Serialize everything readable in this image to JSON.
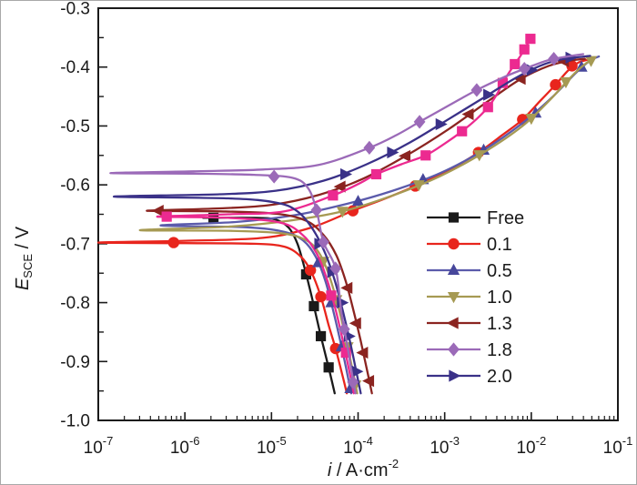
{
  "chart_data": {
    "type": "line",
    "title": "",
    "xlabel": {
      "symbol": "i",
      "unit": " / A·cm",
      "exponent": "-2"
    },
    "ylabel": {
      "symbol": "E",
      "subscript": "SCE",
      "unit": " / V"
    },
    "x_axis": {
      "scale": "log",
      "min_exp": -7,
      "max_exp": -1,
      "tick_exponents": [
        -7,
        -6,
        -5,
        -4,
        -3,
        -2,
        -1
      ],
      "tick_base": "10"
    },
    "y_axis": {
      "min": -1.0,
      "max": -0.3,
      "major_step": 0.1,
      "minor_step": 0.05,
      "tick_labels": [
        "-0.3",
        "-0.4",
        "-0.5",
        "-0.6",
        "-0.7",
        "-0.8",
        "-0.9",
        "-1.0"
      ]
    },
    "grid": false,
    "legend_position": "center-right",
    "series": [
      {
        "name": "free",
        "label": "Free",
        "color": "#1a1a1a",
        "marker": "square",
        "in_legend": true,
        "curve": [
          [
            -5.79,
            -0.656
          ],
          [
            -5.2,
            -0.656
          ],
          [
            -4.95,
            -0.659
          ],
          [
            -4.8,
            -0.673
          ],
          [
            -4.7,
            -0.7
          ],
          [
            -4.62,
            -0.74
          ],
          [
            -4.56,
            -0.775
          ],
          [
            -4.51,
            -0.806
          ],
          [
            -4.43,
            -0.857
          ],
          [
            -4.34,
            -0.91
          ],
          [
            -4.27,
            -0.954
          ]
        ],
        "markers": [
          [
            -5.67,
            -0.656
          ],
          [
            -4.6,
            -0.752
          ],
          [
            -4.51,
            -0.806
          ],
          [
            -4.43,
            -0.857
          ],
          [
            -4.34,
            -0.91
          ]
        ]
      },
      {
        "name": "c0_1",
        "label": "0.1",
        "color": "#e8251d",
        "marker": "circle",
        "in_legend": true,
        "curve": [
          [
            -4.13,
            -0.954
          ],
          [
            -4.19,
            -0.918
          ],
          [
            -4.26,
            -0.878
          ],
          [
            -4.34,
            -0.838
          ],
          [
            -4.43,
            -0.79
          ],
          [
            -4.54,
            -0.748
          ],
          [
            -4.66,
            -0.722
          ],
          [
            -4.85,
            -0.705
          ],
          [
            -5.2,
            -0.7
          ],
          [
            -6.0,
            -0.699
          ],
          [
            -7.0,
            -0.698
          ],
          [
            -6.0,
            -0.695
          ],
          [
            -5.1,
            -0.69
          ],
          [
            -4.55,
            -0.673
          ],
          [
            -4.06,
            -0.644
          ],
          [
            -3.7,
            -0.624
          ],
          [
            -3.34,
            -0.602
          ],
          [
            -2.95,
            -0.575
          ],
          [
            -2.61,
            -0.545
          ],
          [
            -2.33,
            -0.515
          ],
          [
            -2.1,
            -0.489
          ],
          [
            -1.9,
            -0.458
          ],
          [
            -1.72,
            -0.43
          ],
          [
            -1.57,
            -0.405
          ],
          [
            -1.45,
            -0.392
          ],
          [
            -1.3,
            -0.386
          ]
        ],
        "markers": [
          [
            -6.13,
            -0.698
          ],
          [
            -4.55,
            -0.745
          ],
          [
            -4.43,
            -0.79
          ],
          [
            -4.26,
            -0.878
          ],
          [
            -4.06,
            -0.644
          ],
          [
            -3.34,
            -0.602
          ],
          [
            -2.61,
            -0.545
          ],
          [
            -2.1,
            -0.489
          ],
          [
            -1.72,
            -0.43
          ],
          [
            -1.53,
            -0.398
          ]
        ]
      },
      {
        "name": "c0_5",
        "label": "0.5",
        "color": "#5b5bab",
        "marker": "triangle-up",
        "marker_color": "#47479b",
        "in_legend": true,
        "curve": [
          [
            -4.08,
            -0.954
          ],
          [
            -4.14,
            -0.91
          ],
          [
            -4.21,
            -0.862
          ],
          [
            -4.29,
            -0.812
          ],
          [
            -4.38,
            -0.762
          ],
          [
            -4.49,
            -0.722
          ],
          [
            -4.63,
            -0.695
          ],
          [
            -4.85,
            -0.68
          ],
          [
            -5.3,
            -0.672
          ],
          [
            -6.28,
            -0.669
          ],
          [
            -5.4,
            -0.663
          ],
          [
            -4.75,
            -0.652
          ],
          [
            -4.15,
            -0.633
          ],
          [
            -3.6,
            -0.61
          ],
          [
            -3.05,
            -0.58
          ],
          [
            -2.55,
            -0.541
          ],
          [
            -2.1,
            -0.495
          ],
          [
            -1.75,
            -0.45
          ],
          [
            -1.5,
            -0.412
          ],
          [
            -1.33,
            -0.39
          ],
          [
            -1.22,
            -0.382
          ]
        ],
        "markers": [
          [
            -4.46,
            -0.732
          ],
          [
            -4.31,
            -0.8
          ],
          [
            -4.19,
            -0.875
          ],
          [
            -4.09,
            -0.946
          ],
          [
            -4.0,
            -0.628
          ],
          [
            -3.25,
            -0.591
          ],
          [
            -2.55,
            -0.541
          ],
          [
            -1.95,
            -0.478
          ],
          [
            -1.42,
            -0.4
          ]
        ]
      },
      {
        "name": "c1_0",
        "label": "1.0",
        "color": "#a69a53",
        "marker": "triangle-down",
        "in_legend": true,
        "curve": [
          [
            -4.01,
            -0.954
          ],
          [
            -4.07,
            -0.91
          ],
          [
            -4.14,
            -0.862
          ],
          [
            -4.22,
            -0.812
          ],
          [
            -4.32,
            -0.76
          ],
          [
            -4.44,
            -0.718
          ],
          [
            -4.6,
            -0.694
          ],
          [
            -4.9,
            -0.682
          ],
          [
            -5.5,
            -0.678
          ],
          [
            -6.52,
            -0.677
          ],
          [
            -5.5,
            -0.671
          ],
          [
            -4.8,
            -0.661
          ],
          [
            -4.18,
            -0.645
          ],
          [
            -3.6,
            -0.618
          ],
          [
            -3.05,
            -0.585
          ],
          [
            -2.55,
            -0.545
          ],
          [
            -2.1,
            -0.5
          ],
          [
            -1.78,
            -0.455
          ],
          [
            -1.55,
            -0.418
          ],
          [
            -1.38,
            -0.395
          ],
          [
            -1.28,
            -0.387
          ]
        ],
        "markers": [
          [
            -4.4,
            -0.73
          ],
          [
            -4.25,
            -0.795
          ],
          [
            -4.12,
            -0.875
          ],
          [
            -4.03,
            -0.94
          ],
          [
            -4.18,
            -0.645
          ],
          [
            -3.3,
            -0.6
          ],
          [
            -2.6,
            -0.549
          ],
          [
            -2.0,
            -0.487
          ],
          [
            -1.6,
            -0.425
          ],
          [
            -1.31,
            -0.389
          ]
        ]
      },
      {
        "name": "c1_3",
        "label": "1.3",
        "color": "#8b2420",
        "marker": "triangle-left",
        "in_legend": true,
        "curve": [
          [
            -3.84,
            -0.954
          ],
          [
            -3.9,
            -0.912
          ],
          [
            -3.97,
            -0.865
          ],
          [
            -4.05,
            -0.815
          ],
          [
            -4.14,
            -0.765
          ],
          [
            -4.25,
            -0.72
          ],
          [
            -4.4,
            -0.685
          ],
          [
            -4.6,
            -0.661
          ],
          [
            -4.95,
            -0.649
          ],
          [
            -5.6,
            -0.645
          ],
          [
            -6.44,
            -0.644
          ],
          [
            -5.6,
            -0.64
          ],
          [
            -5.0,
            -0.634
          ],
          [
            -4.45,
            -0.617
          ],
          [
            -3.95,
            -0.59
          ],
          [
            -3.45,
            -0.551
          ],
          [
            -2.95,
            -0.505
          ],
          [
            -2.5,
            -0.458
          ],
          [
            -2.12,
            -0.42
          ],
          [
            -1.8,
            -0.398
          ],
          [
            -1.55,
            -0.389
          ],
          [
            -1.38,
            -0.386
          ]
        ],
        "markers": [
          [
            -6.3,
            -0.644
          ],
          [
            -4.12,
            -0.775
          ],
          [
            -4.02,
            -0.835
          ],
          [
            -3.94,
            -0.885
          ],
          [
            -3.87,
            -0.933
          ],
          [
            -4.2,
            -0.603
          ],
          [
            -3.45,
            -0.551
          ],
          [
            -2.72,
            -0.48
          ],
          [
            -2.12,
            -0.42
          ],
          [
            -1.62,
            -0.39
          ]
        ]
      },
      {
        "name": "unlabeled-magenta",
        "label": "",
        "color": "#ec2a90",
        "marker": "square",
        "in_legend": false,
        "curve": [
          [
            -4.05,
            -0.954
          ],
          [
            -4.11,
            -0.91
          ],
          [
            -4.18,
            -0.862
          ],
          [
            -4.26,
            -0.812
          ],
          [
            -4.36,
            -0.76
          ],
          [
            -4.48,
            -0.716
          ],
          [
            -4.64,
            -0.685
          ],
          [
            -4.9,
            -0.664
          ],
          [
            -5.5,
            -0.656
          ],
          [
            -6.32,
            -0.654
          ],
          [
            -5.5,
            -0.65
          ],
          [
            -4.85,
            -0.645
          ],
          [
            -4.29,
            -0.618
          ],
          [
            -3.99,
            -0.598
          ],
          [
            -3.79,
            -0.582
          ],
          [
            -3.5,
            -0.565
          ],
          [
            -3.22,
            -0.55
          ],
          [
            -3.0,
            -0.53
          ],
          [
            -2.8,
            -0.509
          ],
          [
            -2.63,
            -0.488
          ],
          [
            -2.5,
            -0.468
          ],
          [
            -2.4,
            -0.447
          ],
          [
            -2.33,
            -0.427
          ],
          [
            -2.26,
            -0.41
          ],
          [
            -2.19,
            -0.395
          ],
          [
            -2.13,
            -0.382
          ],
          [
            -2.08,
            -0.37
          ],
          [
            -2.0,
            -0.349
          ]
        ],
        "markers": [
          [
            -6.21,
            -0.654
          ],
          [
            -4.31,
            -0.788
          ],
          [
            -4.14,
            -0.885
          ],
          [
            -4.29,
            -0.618
          ],
          [
            -3.79,
            -0.582
          ],
          [
            -3.22,
            -0.55
          ],
          [
            -2.8,
            -0.509
          ],
          [
            -2.5,
            -0.468
          ],
          [
            -2.33,
            -0.427
          ],
          [
            -2.19,
            -0.395
          ],
          [
            -2.08,
            -0.37
          ],
          [
            -2.01,
            -0.352
          ]
        ]
      },
      {
        "name": "c2_0",
        "label": "2.0",
        "color": "#3a3188",
        "marker": "triangle-right",
        "in_legend": true,
        "curve": [
          [
            -3.97,
            -0.954
          ],
          [
            -4.03,
            -0.91
          ],
          [
            -4.1,
            -0.862
          ],
          [
            -4.18,
            -0.812
          ],
          [
            -4.27,
            -0.762
          ],
          [
            -4.38,
            -0.716
          ],
          [
            -4.52,
            -0.676
          ],
          [
            -4.7,
            -0.645
          ],
          [
            -4.95,
            -0.63
          ],
          [
            -5.5,
            -0.623
          ],
          [
            -6.82,
            -0.62
          ],
          [
            -5.6,
            -0.616
          ],
          [
            -4.95,
            -0.61
          ],
          [
            -4.4,
            -0.593
          ],
          [
            -3.9,
            -0.565
          ],
          [
            -3.4,
            -0.528
          ],
          [
            -2.95,
            -0.488
          ],
          [
            -2.55,
            -0.452
          ],
          [
            -2.2,
            -0.42
          ],
          [
            -1.9,
            -0.398
          ],
          [
            -1.65,
            -0.387
          ],
          [
            -1.32,
            -0.381
          ]
        ],
        "markers": [
          [
            -4.45,
            -0.7
          ],
          [
            -4.3,
            -0.748
          ],
          [
            -4.19,
            -0.8
          ],
          [
            -4.11,
            -0.857
          ],
          [
            -4.02,
            -0.917
          ],
          [
            -4.15,
            -0.582
          ],
          [
            -3.61,
            -0.545
          ],
          [
            -3.05,
            -0.497
          ],
          [
            -2.5,
            -0.447
          ],
          [
            -2.0,
            -0.405
          ],
          [
            -1.55,
            -0.384
          ]
        ]
      },
      {
        "name": "c1_8",
        "label": "1.8",
        "color": "#9b6ab8",
        "marker": "diamond",
        "in_legend": true,
        "curve": [
          [
            -4.03,
            -0.954
          ],
          [
            -4.08,
            -0.912
          ],
          [
            -4.13,
            -0.868
          ],
          [
            -4.19,
            -0.819
          ],
          [
            -4.26,
            -0.742
          ],
          [
            -4.4,
            -0.697
          ],
          [
            -4.48,
            -0.643
          ],
          [
            -4.58,
            -0.605
          ],
          [
            -4.76,
            -0.588
          ],
          [
            -5.2,
            -0.583
          ],
          [
            -5.9,
            -0.581
          ],
          [
            -6.86,
            -0.58
          ],
          [
            -5.9,
            -0.577
          ],
          [
            -5.1,
            -0.574
          ],
          [
            -4.45,
            -0.566
          ],
          [
            -3.87,
            -0.537
          ],
          [
            -3.55,
            -0.515
          ],
          [
            -3.29,
            -0.493
          ],
          [
            -2.95,
            -0.465
          ],
          [
            -2.63,
            -0.439
          ],
          [
            -2.3,
            -0.416
          ],
          [
            -2.08,
            -0.403
          ],
          [
            -1.88,
            -0.392
          ],
          [
            -1.74,
            -0.386
          ],
          [
            -1.4,
            -0.378
          ]
        ],
        "markers": [
          [
            -4.97,
            -0.586
          ],
          [
            -4.48,
            -0.643
          ],
          [
            -4.4,
            -0.697
          ],
          [
            -4.26,
            -0.742
          ],
          [
            -4.16,
            -0.845
          ],
          [
            -4.06,
            -0.935
          ],
          [
            -3.87,
            -0.537
          ],
          [
            -3.29,
            -0.493
          ],
          [
            -2.63,
            -0.439
          ],
          [
            -2.08,
            -0.403
          ],
          [
            -1.74,
            -0.386
          ]
        ]
      }
    ],
    "legend": {
      "entries": [
        {
          "label": "Free",
          "series": "free"
        },
        {
          "label": "0.1",
          "series": "c0_1"
        },
        {
          "label": "0.5",
          "series": "c0_5"
        },
        {
          "label": "1.0",
          "series": "c1_0"
        },
        {
          "label": "1.3",
          "series": "c1_3"
        },
        {
          "label": "1.8",
          "series": "c1_8"
        },
        {
          "label": "2.0",
          "series": "c2_0"
        }
      ]
    }
  }
}
